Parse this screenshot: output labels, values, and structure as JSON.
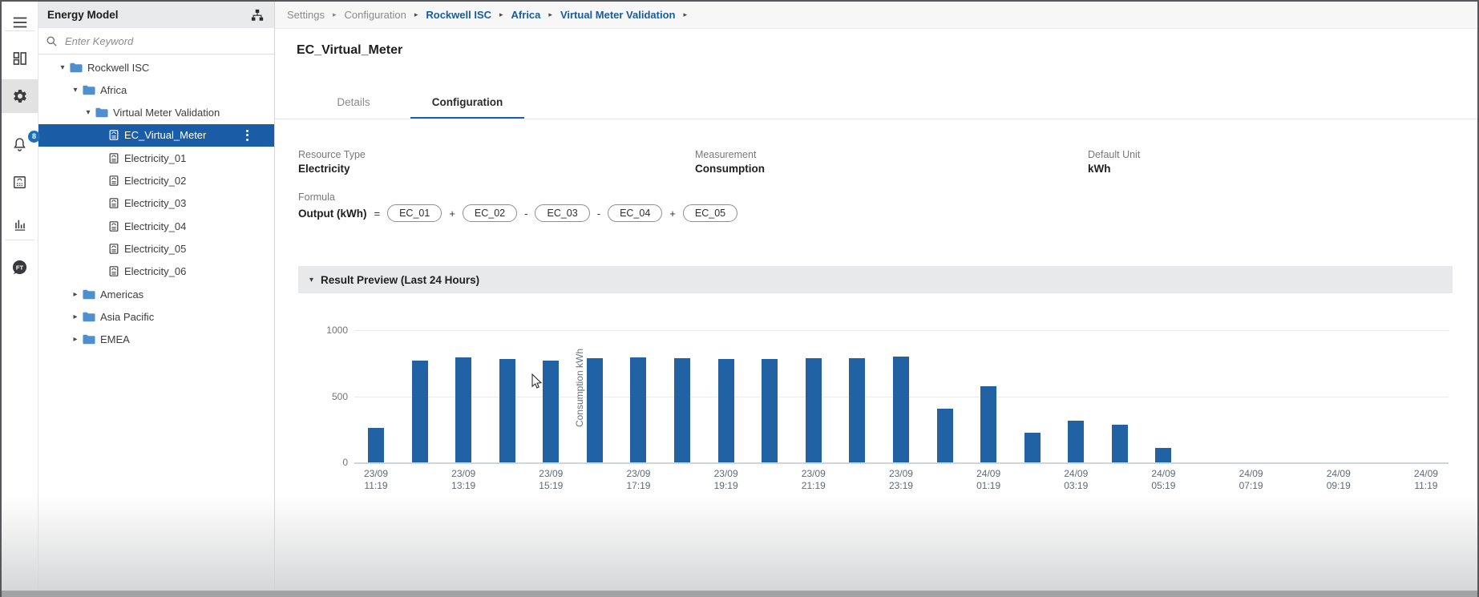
{
  "colors": {
    "accent": "#1d5fa8",
    "bar": "#2162a4",
    "selected_row": "#1b5ca6",
    "breadcrumb_link": "#195c9e",
    "badge": "#1e6fbe",
    "folder": "#4e8fd0"
  },
  "rail": {
    "items": [
      {
        "name": "menu",
        "icon": "menu-icon"
      },
      {
        "name": "dashboard",
        "icon": "dashboard-icon"
      },
      {
        "name": "settings",
        "icon": "gear-icon",
        "active": true
      },
      {
        "name": "notifications",
        "icon": "bell-icon",
        "badge": "8"
      },
      {
        "name": "energy-report",
        "icon": "energy-report-icon"
      },
      {
        "name": "analytics",
        "icon": "bar-chart-icon"
      },
      {
        "name": "factorytalk",
        "icon": "factorytalk-logo",
        "label": "FT"
      }
    ]
  },
  "sidebar": {
    "title": "Energy Model",
    "search_placeholder": "Enter Keyword",
    "tree": [
      {
        "label": "Rockwell ISC",
        "level": 0,
        "type": "folder",
        "expanded": true
      },
      {
        "label": "Africa",
        "level": 1,
        "type": "folder",
        "expanded": true
      },
      {
        "label": "Virtual Meter Validation",
        "level": 2,
        "type": "folder",
        "expanded": true
      },
      {
        "label": "EC_Virtual_Meter",
        "level": 3,
        "type": "meter",
        "selected": true
      },
      {
        "label": "Electricity_01",
        "level": 3,
        "type": "meter"
      },
      {
        "label": "Electricity_02",
        "level": 3,
        "type": "meter"
      },
      {
        "label": "Electricity_03",
        "level": 3,
        "type": "meter"
      },
      {
        "label": "Electricity_04",
        "level": 3,
        "type": "meter"
      },
      {
        "label": "Electricity_05",
        "level": 3,
        "type": "meter"
      },
      {
        "label": "Electricity_06",
        "level": 3,
        "type": "meter"
      },
      {
        "label": "Americas",
        "level": 1,
        "type": "folder",
        "expanded": false
      },
      {
        "label": "Asia Pacific",
        "level": 1,
        "type": "folder",
        "expanded": false
      },
      {
        "label": "EMEA",
        "level": 1,
        "type": "folder",
        "expanded": false
      }
    ]
  },
  "breadcrumb": [
    {
      "label": "Settings",
      "link": false
    },
    {
      "label": "Configuration",
      "link": false
    },
    {
      "label": "Rockwell ISC",
      "link": true
    },
    {
      "label": "Africa",
      "link": true
    },
    {
      "label": "Virtual Meter Validation",
      "link": true
    }
  ],
  "page": {
    "title": "EC_Virtual_Meter",
    "tabs": [
      {
        "label": "Details",
        "active": false
      },
      {
        "label": "Configuration",
        "active": true
      }
    ],
    "fields": [
      {
        "label": "Resource Type",
        "value": "Electricity"
      },
      {
        "label": "Measurement",
        "value": "Consumption"
      },
      {
        "label": "Default Unit",
        "value": "kWh"
      }
    ],
    "formula": {
      "label": "Formula",
      "output": "Output (kWh)",
      "equals": "=",
      "terms": [
        {
          "op": "",
          "chip": "EC_01"
        },
        {
          "op": "+",
          "chip": "EC_02"
        },
        {
          "op": "-",
          "chip": "EC_03"
        },
        {
          "op": "-",
          "chip": "EC_04"
        },
        {
          "op": "+",
          "chip": "EC_05"
        }
      ]
    },
    "preview": {
      "title": "Result Preview (Last 24 Hours)"
    }
  },
  "chart_data": {
    "type": "bar",
    "title": "Result Preview (Last 24 Hours)",
    "xlabel": "",
    "ylabel": "Consumption kWh",
    "ylim": [
      0,
      1000
    ],
    "yticks": [
      0,
      500,
      1000
    ],
    "grid": true,
    "legend": false,
    "bar_color": "#2162a4",
    "x": [
      "23/09 11:19",
      "23/09 12:19",
      "23/09 13:19",
      "23/09 14:19",
      "23/09 15:19",
      "23/09 16:19",
      "23/09 17:19",
      "23/09 18:19",
      "23/09 19:19",
      "23/09 20:19",
      "23/09 21:19",
      "23/09 22:19",
      "23/09 23:19",
      "24/09 00:19",
      "24/09 01:19",
      "24/09 02:19",
      "24/09 03:19",
      "24/09 04:19",
      "24/09 05:19",
      "24/09 06:19",
      "24/09 07:19",
      "24/09 08:19",
      "24/09 09:19",
      "24/09 10:19",
      "24/09 11:19"
    ],
    "values": [
      260,
      770,
      795,
      780,
      770,
      785,
      795,
      790,
      780,
      780,
      790,
      790,
      800,
      405,
      575,
      225,
      315,
      285,
      110,
      0,
      0,
      0,
      0,
      0,
      0
    ],
    "xticks": [
      "23/09 11:19",
      "23/09 13:19",
      "23/09 15:19",
      "23/09 17:19",
      "23/09 19:19",
      "23/09 21:19",
      "23/09 23:19",
      "24/09 01:19",
      "24/09 03:19",
      "24/09 05:19",
      "24/09 07:19",
      "24/09 09:19",
      "24/09 11:19"
    ]
  }
}
